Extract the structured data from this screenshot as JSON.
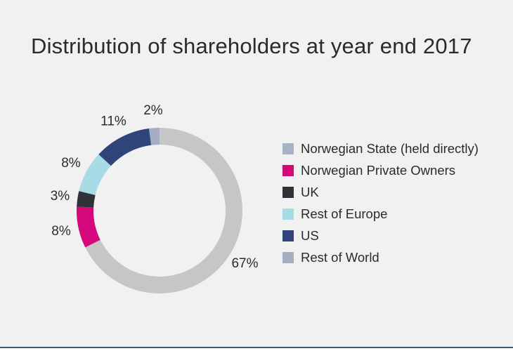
{
  "chart_data": {
    "type": "pie",
    "variant": "donut",
    "title": "Distribution of shareholders at year end 2017",
    "legend_position": "right",
    "slices": [
      {
        "name": "Norwegian State (held directly)",
        "value": 67,
        "label": "67%",
        "color": "#c6c6c9"
      },
      {
        "name": "Norwegian Private Owners",
        "value": 8,
        "label": "8%",
        "color": "#d4087b"
      },
      {
        "name": "UK",
        "value": 3,
        "label": "3%",
        "color": "#2f3237"
      },
      {
        "name": "Rest of Europe",
        "value": 8,
        "label": "8%",
        "color": "#a7dbe5"
      },
      {
        "name": "US",
        "value": 11,
        "label": "11%",
        "color": "#2f4479"
      },
      {
        "name": "Rest of World",
        "value": 2,
        "label": "2%",
        "color": "#a4adc3"
      }
    ]
  },
  "legend_items": [
    {
      "label": "Norwegian State (held directly)",
      "color": "#a9b1c4"
    },
    {
      "label": "Norwegian Private Owners",
      "color": "#d4087b"
    },
    {
      "label": "UK",
      "color": "#2f3237"
    },
    {
      "label": "Rest of Europe",
      "color": "#a7dbe5"
    },
    {
      "label": "US",
      "color": "#2f4479"
    },
    {
      "label": "Rest of World",
      "color": "#a4adc3"
    }
  ]
}
